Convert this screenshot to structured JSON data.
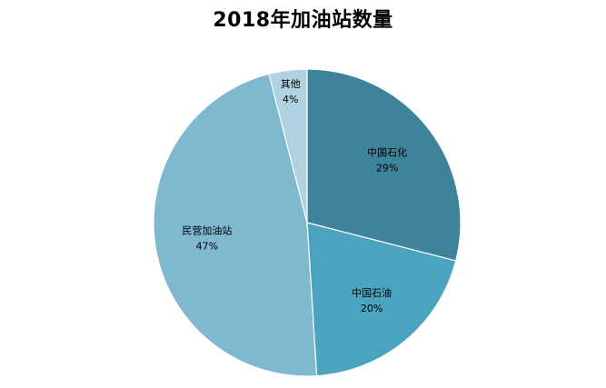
{
  "chart_data": {
    "type": "pie",
    "title": "2018年加油站数量",
    "series": [
      {
        "slices": [
          {
            "label": "中国石化",
            "value": 29,
            "value_label": "29%",
            "color": "#3d8399"
          },
          {
            "label": "中国石油",
            "value": 20,
            "value_label": "20%",
            "color": "#4aa3bf"
          },
          {
            "label": "民营加油站",
            "value": 47,
            "value_label": "47%",
            "color": "#7fb9cf"
          },
          {
            "label": "其他",
            "value": 4,
            "value_label": "4%",
            "color": "#afd3e0"
          }
        ]
      }
    ],
    "start_angle_deg": 0,
    "direction": "clockwise",
    "legend": "none"
  }
}
